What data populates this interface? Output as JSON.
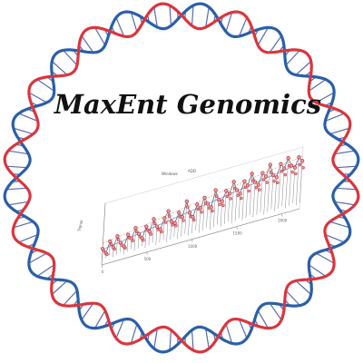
{
  "logo": {
    "title": "MaxEnt Genomics",
    "colors": {
      "strand_a": "#d9363e",
      "strand_b": "#2b5fa8",
      "rung": "#3a4fa0",
      "title": "#111111",
      "trace": "#555555",
      "points": "#c0303a",
      "trend": "#2a56c6"
    }
  },
  "plot": {
    "legend": [
      "Windows",
      "ADD"
    ],
    "x_ticks": [
      "0",
      "500",
      "1000",
      "1500",
      "2000"
    ],
    "y_label": "Signal"
  },
  "chart_data": {
    "type": "line",
    "x": [
      0,
      40,
      80,
      120,
      160,
      200,
      240,
      280,
      320,
      360,
      400,
      440,
      480,
      520,
      560,
      600,
      640,
      680,
      720,
      760,
      800,
      840,
      880,
      920,
      960,
      1000,
      1040,
      1080,
      1120,
      1160,
      1200,
      1240,
      1280,
      1320,
      1360,
      1400,
      1440,
      1480,
      1520,
      1560,
      1600,
      1640,
      1680,
      1720,
      1760,
      1800,
      1840,
      1880,
      1920,
      1960,
      2000,
      2040,
      2080,
      2120,
      2160,
      2200
    ],
    "series": [
      {
        "values": [
          2.1,
          1.4,
          2.8,
          1.9,
          3.2,
          2.2,
          1.6,
          3.0,
          2.4,
          3.6,
          2.7,
          2.0,
          3.4,
          2.6,
          4.1,
          3.0,
          2.5,
          3.8,
          4.6,
          3.1,
          2.8,
          4.0,
          3.3,
          5.2,
          3.6,
          2.9,
          4.4,
          3.8,
          5.0,
          4.1,
          3.5,
          5.6,
          4.2,
          3.9,
          5.1,
          4.6,
          6.0,
          4.8,
          4.2,
          5.7,
          5.0,
          6.4,
          5.2,
          4.7,
          6.1,
          5.5,
          6.9,
          5.4,
          5.0,
          6.6,
          5.9,
          7.1,
          6.0,
          5.6,
          6.8,
          6.2
        ]
      }
    ],
    "ylim": [
      0,
      8
    ],
    "xlim": [
      0,
      2200
    ],
    "grid": false
  }
}
